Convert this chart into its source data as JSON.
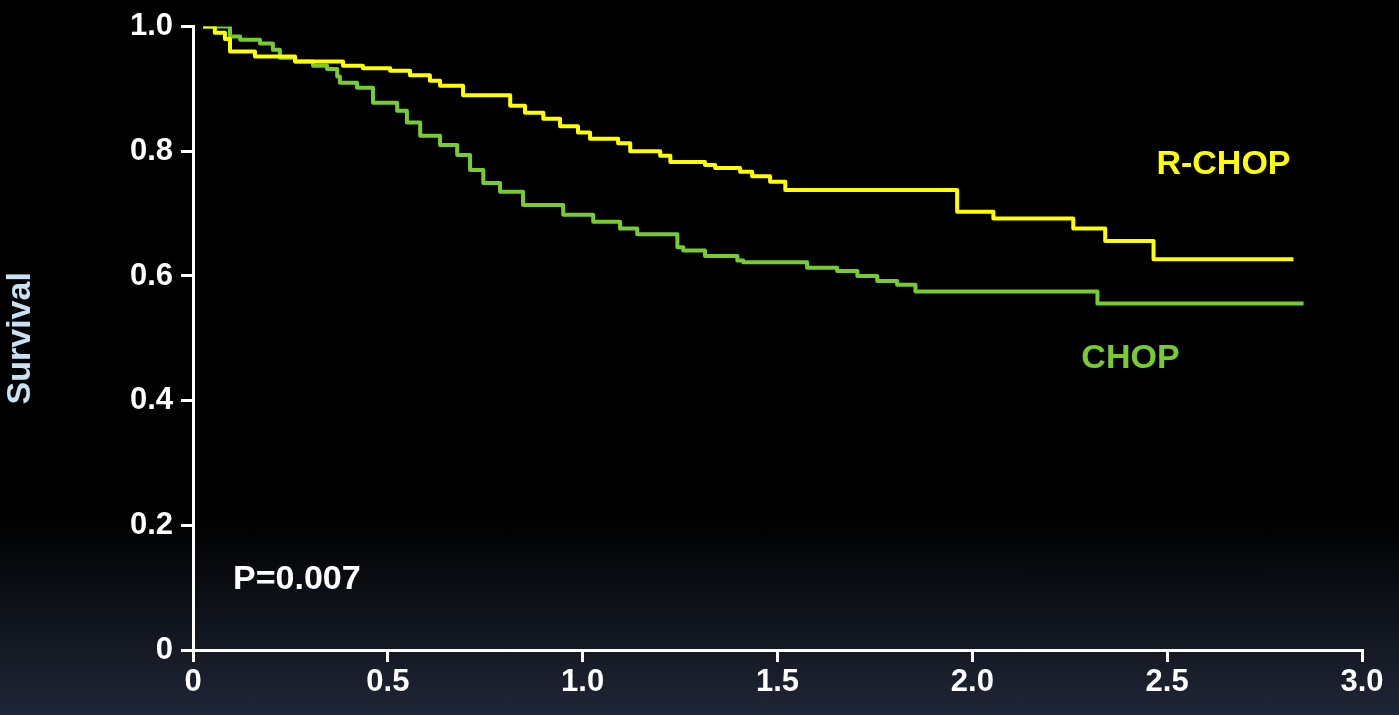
{
  "chart_data": {
    "type": "step",
    "ylabel": "Survival",
    "annotations": [
      "P=0.007"
    ],
    "xlim": [
      0,
      3
    ],
    "xticks": [
      0,
      0.5,
      {
        "value": 1,
        "label": "1.0"
      },
      1.5,
      {
        "value": 2,
        "label": "2.0"
      },
      2.5,
      {
        "value": 3,
        "label": "3.0"
      }
    ],
    "ylim": [
      0,
      1
    ],
    "yticks": [
      0,
      0.2,
      0.4,
      0.6,
      0.8,
      {
        "value": 1,
        "label": "1.0"
      }
    ],
    "grid": false,
    "legend": false,
    "marker": "none",
    "line_style": "solid",
    "series": [
      {
        "name": "R-CHOP",
        "color": "#ffff00",
        "x": [
          0.026,
          0.056,
          0.082,
          0.095,
          0.159,
          0.262,
          0.385,
          0.436,
          0.506,
          0.557,
          0.608,
          0.634,
          0.693,
          0.814,
          0.852,
          0.899,
          0.942,
          0.988,
          1.019,
          1.091,
          1.122,
          1.199,
          1.225,
          1.314,
          1.34,
          1.404,
          1.435,
          1.481,
          1.52,
          1.961,
          2.054,
          2.259,
          2.341,
          2.465,
          2.824
        ],
        "values": [
          1.0,
          0.99,
          0.98,
          0.96,
          0.952,
          0.944,
          0.937,
          0.933,
          0.929,
          0.922,
          0.913,
          0.905,
          0.89,
          0.873,
          0.862,
          0.852,
          0.84,
          0.83,
          0.82,
          0.813,
          0.8,
          0.793,
          0.783,
          0.778,
          0.773,
          0.767,
          0.76,
          0.751,
          0.738,
          0.703,
          0.692,
          0.676,
          0.656,
          0.627,
          0.627
        ]
      },
      {
        "name": "CHOP",
        "color": "#77cc33",
        "x": [
          0.026,
          0.095,
          0.121,
          0.172,
          0.205,
          0.223,
          0.262,
          0.308,
          0.344,
          0.37,
          0.377,
          0.421,
          0.462,
          0.524,
          0.549,
          0.583,
          0.634,
          0.678,
          0.711,
          0.745,
          0.788,
          0.847,
          0.95,
          1.027,
          1.096,
          1.14,
          1.243,
          1.258,
          1.314,
          1.397,
          1.412,
          1.576,
          1.653,
          1.705,
          1.756,
          1.807,
          1.854,
          2.321,
          2.85
        ],
        "values": [
          1.0,
          0.984,
          0.979,
          0.973,
          0.963,
          0.95,
          0.944,
          0.937,
          0.932,
          0.92,
          0.91,
          0.902,
          0.878,
          0.865,
          0.846,
          0.825,
          0.81,
          0.794,
          0.77,
          0.749,
          0.735,
          0.714,
          0.698,
          0.687,
          0.676,
          0.667,
          0.646,
          0.641,
          0.632,
          0.625,
          0.622,
          0.613,
          0.608,
          0.6,
          0.592,
          0.586,
          0.575,
          0.556,
          0.556
        ]
      }
    ]
  }
}
